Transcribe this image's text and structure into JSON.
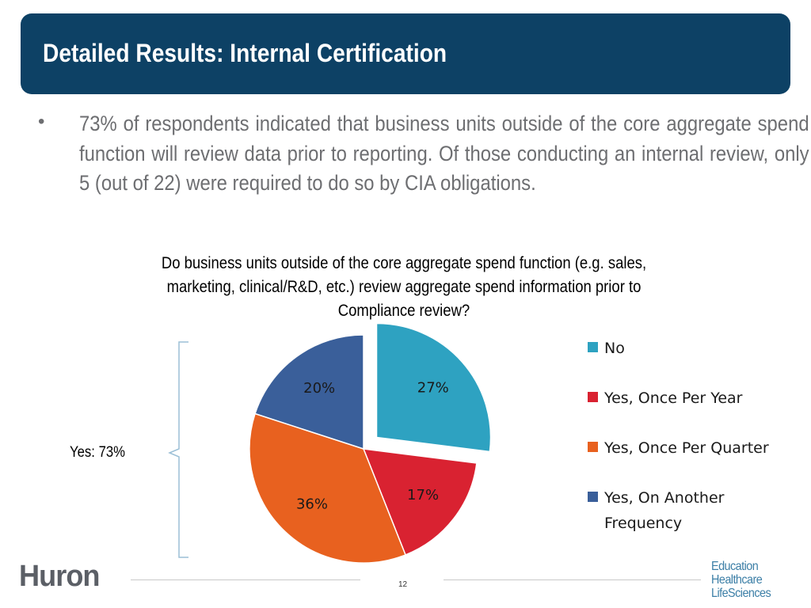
{
  "header": {
    "title": "Detailed Results: Internal Certification"
  },
  "bullet": {
    "marker": "•",
    "text": "73% of respondents indicated that business units outside of the core aggregate spend function will review data prior to reporting.  Of those conducting an internal review, only 5 (out of 22) were required to do so by CIA obligations."
  },
  "bracket_label": "Yes: 73%",
  "chart_data": {
    "type": "pie",
    "title": "Do business units outside of the core aggregate spend function (e.g. sales, marketing, clinical/R&D, etc.) review aggregate spend information prior to Compliance review?",
    "slices": [
      {
        "name": "No",
        "value": 27,
        "label": "27%",
        "color": "#2ea2c1",
        "exploded": true
      },
      {
        "name": "Yes, Once Per Year",
        "value": 17,
        "label": "17%",
        "color": "#d92231",
        "exploded": false
      },
      {
        "name": "Yes, Once Per Quarter",
        "value": 36,
        "label": "36%",
        "color": "#e8611f",
        "exploded": false
      },
      {
        "name": "Yes, On Another Frequency",
        "value": 20,
        "label": "20%",
        "color": "#3a5f9a",
        "exploded": false
      }
    ],
    "legend_position": "right"
  },
  "footer": {
    "logo": "Huron",
    "page_number": "12",
    "brands": [
      "Education",
      "Healthcare",
      "LifeSciences"
    ]
  },
  "colors": {
    "title_bar": "#0d4165",
    "body_text": "#6d6e71",
    "brand_text": "#3b7ea6"
  }
}
